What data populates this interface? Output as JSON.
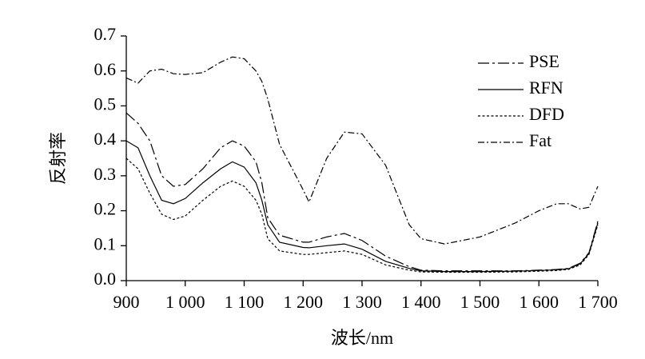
{
  "chart_data": {
    "type": "line",
    "x_label": "波长/nm",
    "y_label": "反射率",
    "x": [
      900,
      920,
      940,
      960,
      980,
      1000,
      1030,
      1060,
      1080,
      1100,
      1120,
      1130,
      1140,
      1160,
      1200,
      1210,
      1240,
      1270,
      1300,
      1340,
      1380,
      1400,
      1440,
      1500,
      1560,
      1600,
      1630,
      1650,
      1670,
      1685,
      1700
    ],
    "series": [
      {
        "name": "PSE",
        "color": "#000000",
        "values": [
          0.48,
          0.45,
          0.4,
          0.3,
          0.27,
          0.275,
          0.32,
          0.38,
          0.4,
          0.385,
          0.34,
          0.28,
          0.18,
          0.13,
          0.11,
          0.11,
          0.125,
          0.135,
          0.115,
          0.07,
          0.04,
          0.03,
          0.028,
          0.028,
          0.028,
          0.03,
          0.032,
          0.035,
          0.05,
          0.08,
          0.17
        ]
      },
      {
        "name": "RFN",
        "color": "#000000",
        "values": [
          0.4,
          0.38,
          0.3,
          0.23,
          0.22,
          0.235,
          0.28,
          0.32,
          0.34,
          0.325,
          0.28,
          0.23,
          0.16,
          0.11,
          0.095,
          0.094,
          0.1,
          0.105,
          0.09,
          0.055,
          0.035,
          0.028,
          0.026,
          0.026,
          0.027,
          0.029,
          0.031,
          0.034,
          0.048,
          0.078,
          0.165
        ]
      },
      {
        "name": "DFD",
        "color": "#000000",
        "values": [
          0.35,
          0.32,
          0.25,
          0.19,
          0.175,
          0.185,
          0.23,
          0.27,
          0.285,
          0.27,
          0.23,
          0.19,
          0.12,
          0.085,
          0.075,
          0.075,
          0.08,
          0.085,
          0.075,
          0.045,
          0.03,
          0.025,
          0.024,
          0.024,
          0.025,
          0.027,
          0.029,
          0.032,
          0.045,
          0.075,
          0.16
        ]
      },
      {
        "name": "Fat",
        "color": "#000000",
        "values": [
          0.58,
          0.565,
          0.6,
          0.605,
          0.592,
          0.59,
          0.595,
          0.625,
          0.64,
          0.635,
          0.6,
          0.57,
          0.52,
          0.39,
          0.26,
          0.225,
          0.35,
          0.425,
          0.42,
          0.33,
          0.16,
          0.12,
          0.105,
          0.125,
          0.165,
          0.2,
          0.22,
          0.22,
          0.205,
          0.21,
          0.27
        ]
      }
    ],
    "xlim": [
      900,
      1700
    ],
    "xticks": [
      900,
      {
        "value": 1000,
        "label": "1 000"
      },
      {
        "value": 1100,
        "label": "1 100"
      },
      {
        "value": 1200,
        "label": "1 200"
      },
      {
        "value": 1300,
        "label": "1 300"
      },
      {
        "value": 1400,
        "label": "1 400"
      },
      {
        "value": 1500,
        "label": "1 500"
      },
      {
        "value": 1600,
        "label": "1 600"
      },
      {
        "value": 1700,
        "label": "1 700"
      }
    ],
    "ylim": [
      0,
      0.7
    ],
    "yticks": [
      {
        "value": 0,
        "label": "0.0"
      },
      0.1,
      0.2,
      0.3,
      0.4,
      0.5,
      0.6,
      0.7
    ],
    "legend": "upper right"
  }
}
